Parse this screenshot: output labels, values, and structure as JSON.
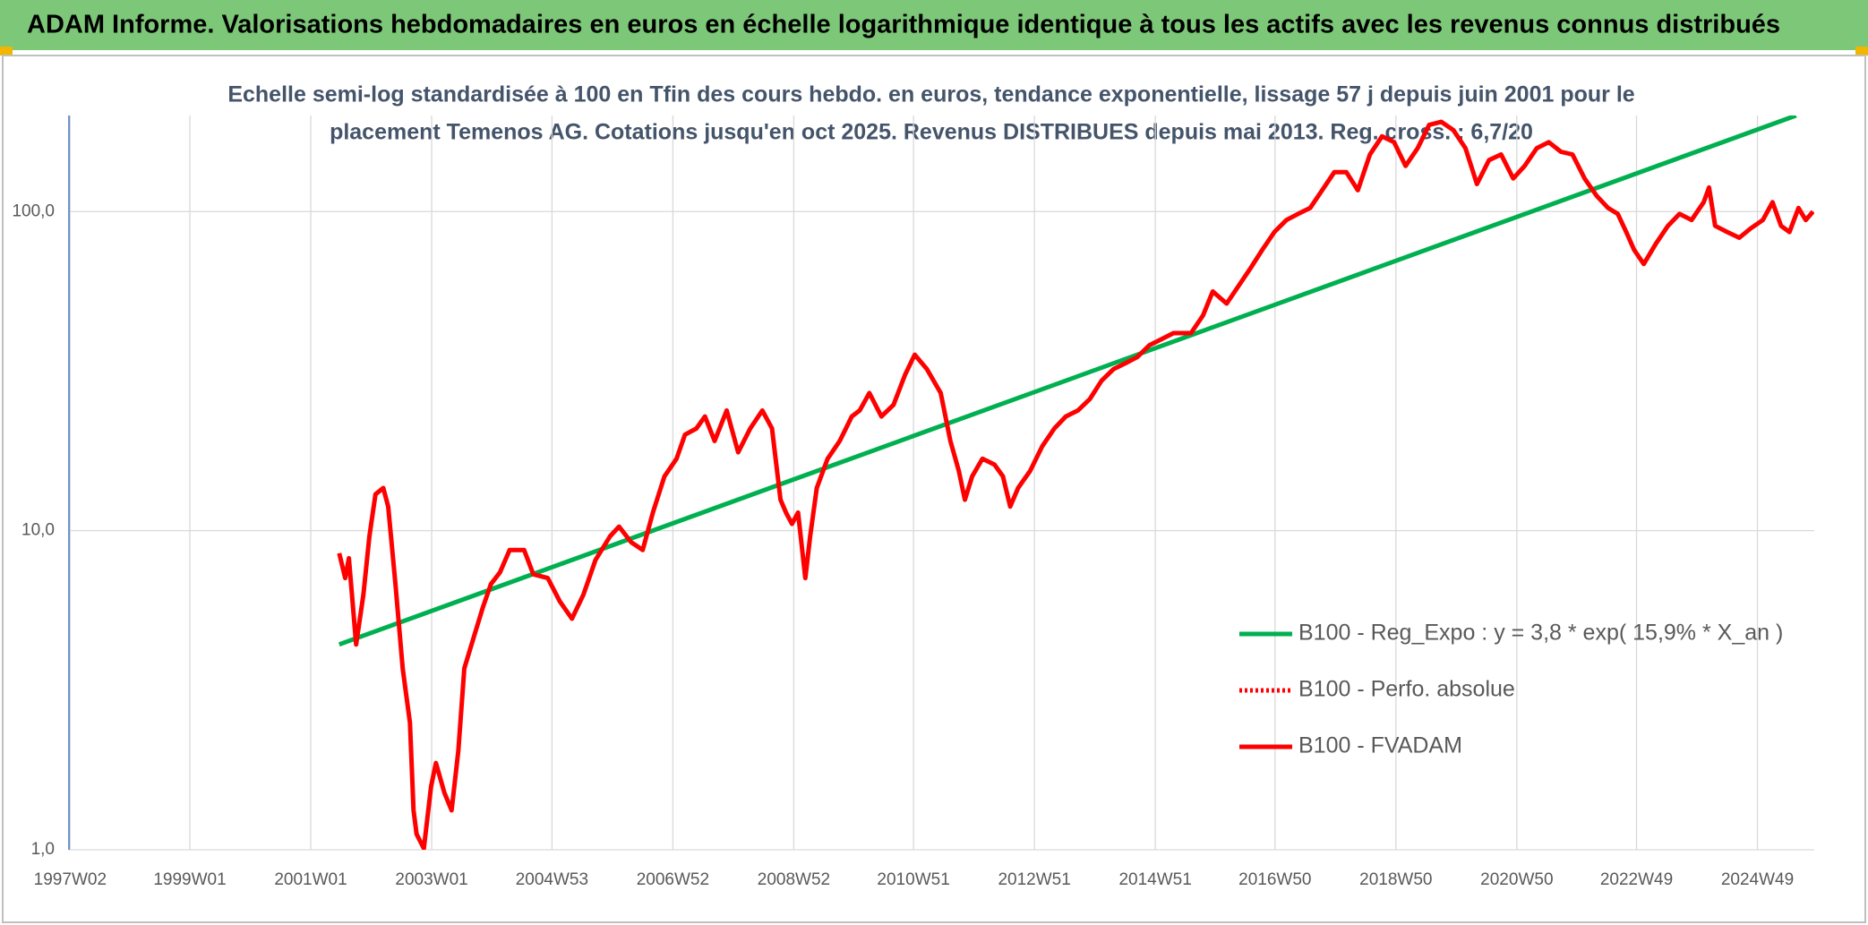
{
  "chart_data": {
    "type": "line",
    "title": "ADAM Informe. Valorisations hebdomadaires en euros en échelle logarithmique identique à tous les actifs avec les revenus connus distribués",
    "subtitle": [
      "Echelle semi-log standardisée à 100 en Tfin des cours hebdo. en euros, tendance exponentielle, lissage 57 j depuis juin 2001 pour le",
      "placement Temenos AG. Cotations jusqu'en oct 2025. Revenus DISTRIBUES depuis mai 2013. Reg. cross. : 6,7/20"
    ],
    "log_scale": true,
    "grid": true,
    "legend": "right",
    "xlim": [
      1997.0,
      2025.87
    ],
    "xticks": [
      {
        "value": 1997.02,
        "label": "1997W02"
      },
      {
        "value": 1999.0,
        "label": "1999W01"
      },
      {
        "value": 2001.0,
        "label": "2001W01"
      },
      {
        "value": 2003.0,
        "label": "2003W01"
      },
      {
        "value": 2004.99,
        "label": "2004W53"
      },
      {
        "value": 2006.99,
        "label": "2006W52"
      },
      {
        "value": 2008.99,
        "label": "2008W52"
      },
      {
        "value": 2010.97,
        "label": "2010W51"
      },
      {
        "value": 2012.97,
        "label": "2012W51"
      },
      {
        "value": 2014.97,
        "label": "2014W51"
      },
      {
        "value": 2016.95,
        "label": "2016W50"
      },
      {
        "value": 2018.95,
        "label": "2018W50"
      },
      {
        "value": 2020.95,
        "label": "2020W50"
      },
      {
        "value": 2022.93,
        "label": "2022W49"
      },
      {
        "value": 2024.93,
        "label": "2024W49"
      }
    ],
    "ylim": [
      1,
      200
    ],
    "yticks": [
      {
        "value": 1,
        "label": "1,0"
      },
      {
        "value": 10,
        "label": "10,0"
      },
      {
        "value": 100,
        "label": "100,0"
      }
    ],
    "series": [
      {
        "name": "B100 - Reg_Expo : y = 3,8 * exp( 15,9% *  X_an )",
        "color": "#00b050",
        "dash": "solid",
        "x": [
          2001.47,
          2025.57
        ],
        "values": [
          4.4,
          200
        ]
      },
      {
        "name": "B100 - Perfo. absolue",
        "color": "#ff0000",
        "dash": "dotted",
        "x": [],
        "values": []
      },
      {
        "name": "B100 - FVADAM",
        "color": "#ff0000",
        "dash": "solid",
        "x": [
          2001.47,
          2001.57,
          2001.63,
          2001.75,
          2001.87,
          2001.97,
          2002.07,
          2002.2,
          2002.28,
          2002.4,
          2002.52,
          2002.64,
          2002.7,
          2002.75,
          2002.87,
          2002.99,
          2003.07,
          2003.21,
          2003.33,
          2003.44,
          2003.54,
          2003.66,
          2003.84,
          2003.98,
          2004.13,
          2004.29,
          2004.53,
          2004.68,
          2004.92,
          2005.12,
          2005.32,
          2005.51,
          2005.71,
          2005.95,
          2006.1,
          2006.3,
          2006.49,
          2006.66,
          2006.85,
          2007.05,
          2007.19,
          2007.38,
          2007.52,
          2007.68,
          2007.88,
          2008.07,
          2008.27,
          2008.47,
          2008.63,
          2008.77,
          2008.86,
          2008.96,
          2009.06,
          2009.18,
          2009.26,
          2009.37,
          2009.55,
          2009.75,
          2009.95,
          2010.08,
          2010.24,
          2010.44,
          2010.64,
          2010.83,
          2010.99,
          2011.19,
          2011.42,
          2011.58,
          2011.72,
          2011.82,
          2011.94,
          2012.11,
          2012.31,
          2012.45,
          2012.57,
          2012.7,
          2012.9,
          2013.1,
          2013.3,
          2013.49,
          2013.69,
          2013.89,
          2014.08,
          2014.28,
          2014.48,
          2014.67,
          2014.87,
          2015.07,
          2015.27,
          2015.56,
          2015.76,
          2015.92,
          2016.15,
          2016.35,
          2016.55,
          2016.74,
          2016.94,
          2017.14,
          2017.33,
          2017.53,
          2017.73,
          2017.93,
          2018.13,
          2018.32,
          2018.52,
          2018.72,
          2018.92,
          2019.11,
          2019.31,
          2019.5,
          2019.7,
          2019.9,
          2020.1,
          2020.29,
          2020.49,
          2020.69,
          2020.89,
          2021.08,
          2021.28,
          2021.48,
          2021.68,
          2021.87,
          2022.07,
          2022.27,
          2022.46,
          2022.62,
          2022.76,
          2022.89,
          2023.05,
          2023.25,
          2023.45,
          2023.64,
          2023.84,
          2024.04,
          2024.13,
          2024.23,
          2024.43,
          2024.63,
          2024.82,
          2025.02,
          2025.18,
          2025.32,
          2025.46,
          2025.61,
          2025.73,
          2025.85
        ],
        "values": [
          8.5,
          7.1,
          8.2,
          4.4,
          6.3,
          9.6,
          13.0,
          13.6,
          11.9,
          6.8,
          3.7,
          2.5,
          1.33,
          1.12,
          1.01,
          1.58,
          1.87,
          1.51,
          1.33,
          2.04,
          3.7,
          4.4,
          5.7,
          6.8,
          7.4,
          8.7,
          8.7,
          7.3,
          7.1,
          6.0,
          5.3,
          6.3,
          8.1,
          9.6,
          10.3,
          9.2,
          8.7,
          11.4,
          14.8,
          16.8,
          20.0,
          20.9,
          22.8,
          19.1,
          23.8,
          17.6,
          20.9,
          23.8,
          20.9,
          12.5,
          11.4,
          10.5,
          11.4,
          7.1,
          9.6,
          13.6,
          16.8,
          19.1,
          22.8,
          23.8,
          27.0,
          22.8,
          24.8,
          30.8,
          35.6,
          32.1,
          27.0,
          19.1,
          15.4,
          12.5,
          14.8,
          16.8,
          16.1,
          14.8,
          11.9,
          13.6,
          15.4,
          18.4,
          20.9,
          22.8,
          23.8,
          25.9,
          29.5,
          32.1,
          33.5,
          35.0,
          38.1,
          39.8,
          41.6,
          41.6,
          47.3,
          56.2,
          51.5,
          58.6,
          66.7,
          75.9,
          86.3,
          94.1,
          98.3,
          102.6,
          116.7,
          132.9,
          132.9,
          116.7,
          151,
          172,
          165,
          139,
          158,
          187,
          191,
          180,
          158,
          122,
          145,
          151,
          127,
          139,
          158,
          165,
          154,
          151,
          127,
          112,
          102.6,
          98.3,
          86.3,
          75.9,
          68.5,
          79.3,
          90.2,
          98.3,
          94.1,
          107,
          119,
          90.2,
          86.3,
          82.8,
          88.6,
          94.1,
          107,
          90.2,
          86.3,
          102.6,
          94.1,
          100
        ]
      }
    ]
  }
}
